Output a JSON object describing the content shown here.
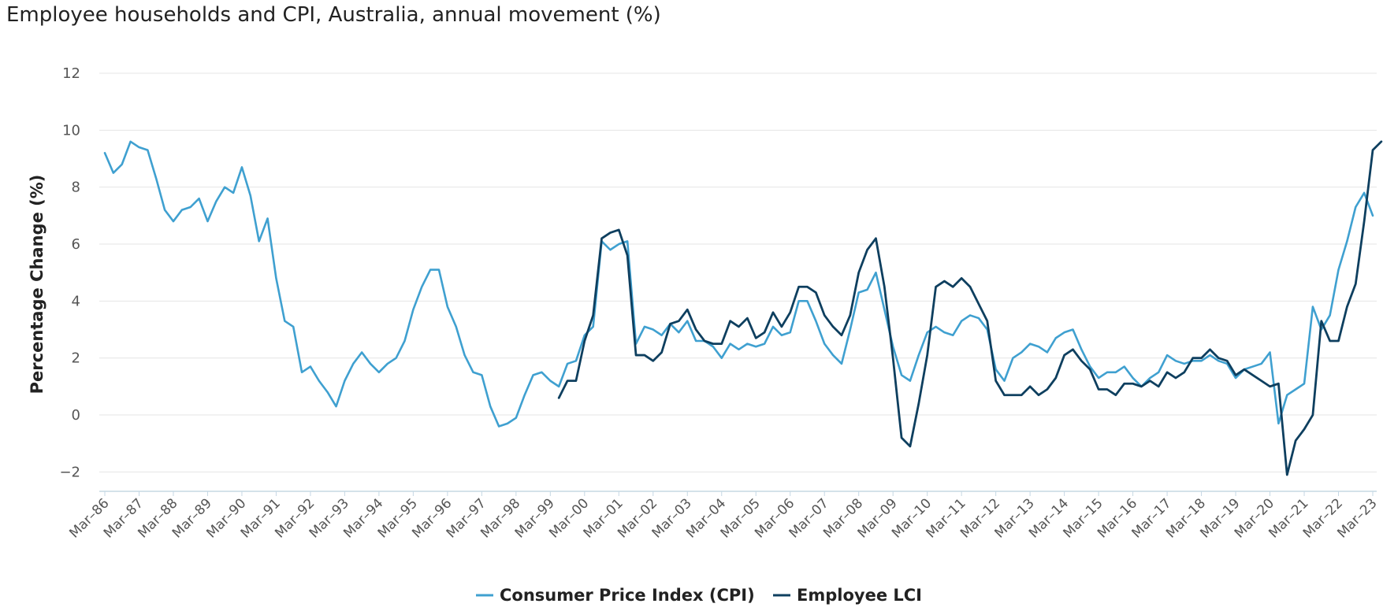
{
  "chart_data": {
    "type": "line",
    "title": "Employee households and CPI, Australia, annual movement (%)",
    "ylabel": "Percentage Change (%)",
    "xlabel": "",
    "ylim": [
      -2.7,
      12.5
    ],
    "y_ticks": [
      -2,
      0,
      2,
      4,
      6,
      8,
      10,
      12
    ],
    "grid": true,
    "legend_position": "bottom-center",
    "x_ticks": [
      "Mar-86",
      "Mar-87",
      "Mar-88",
      "Mar-89",
      "Mar-90",
      "Mar-91",
      "Mar-92",
      "Mar-93",
      "Mar-94",
      "Mar-95",
      "Mar-96",
      "Mar-97",
      "Mar-98",
      "Mar-99",
      "Mar-00",
      "Mar-01",
      "Mar-02",
      "Mar-03",
      "Mar-04",
      "Mar-05",
      "Mar-06",
      "Mar-07",
      "Mar-08",
      "Mar-09",
      "Mar-10",
      "Mar-11",
      "Mar-12",
      "Mar-13",
      "Mar-14",
      "Mar-15",
      "Mar-16",
      "Mar-17",
      "Mar-18",
      "Mar-19",
      "Mar-20",
      "Mar-21",
      "Mar-22",
      "Mar-23"
    ],
    "series": [
      {
        "name": "Consumer Price Index (CPI)",
        "color": "#3fa0d0",
        "start_quarter": "Mar-86",
        "values": [
          9.2,
          8.5,
          8.8,
          9.6,
          9.4,
          9.3,
          8.3,
          7.2,
          6.8,
          7.2,
          7.3,
          7.6,
          6.8,
          7.5,
          8.0,
          7.8,
          8.7,
          7.7,
          6.1,
          6.9,
          4.8,
          3.3,
          3.1,
          1.5,
          1.7,
          1.2,
          0.8,
          0.3,
          1.2,
          1.8,
          2.2,
          1.8,
          1.5,
          1.8,
          2.0,
          2.6,
          3.7,
          4.5,
          5.1,
          5.1,
          3.8,
          3.1,
          2.1,
          1.5,
          1.4,
          0.3,
          -0.4,
          -0.3,
          -0.1,
          0.7,
          1.4,
          1.5,
          1.2,
          1.0,
          1.8,
          1.9,
          2.8,
          3.1,
          6.1,
          5.8,
          6.0,
          6.1,
          2.5,
          3.1,
          3.0,
          2.8,
          3.2,
          2.9,
          3.3,
          2.6,
          2.6,
          2.4,
          2.0,
          2.5,
          2.3,
          2.5,
          2.4,
          2.5,
          3.1,
          2.8,
          2.9,
          4.0,
          4.0,
          3.3,
          2.5,
          2.1,
          1.8,
          3.0,
          4.3,
          4.4,
          5.0,
          3.7,
          2.4,
          1.4,
          1.2,
          2.1,
          2.9,
          3.1,
          2.9,
          2.8,
          3.3,
          3.5,
          3.4,
          3.0,
          1.6,
          1.2,
          2.0,
          2.2,
          2.5,
          2.4,
          2.2,
          2.7,
          2.9,
          3.0,
          2.3,
          1.7,
          1.3,
          1.5,
          1.5,
          1.7,
          1.3,
          1.0,
          1.3,
          1.5,
          2.1,
          1.9,
          1.8,
          1.9,
          1.9,
          2.1,
          1.9,
          1.8,
          1.3,
          1.6,
          1.7,
          1.8,
          2.2,
          -0.3,
          0.7,
          0.9,
          1.1,
          3.8,
          3.0,
          3.5,
          5.1,
          6.1,
          7.3,
          7.8,
          7.0
        ]
      },
      {
        "name": "Employee LCI",
        "color": "#0e3f5f",
        "start_quarter": "Jun-99",
        "values": [
          0.6,
          1.2,
          1.2,
          2.6,
          3.5,
          6.2,
          6.4,
          6.5,
          5.6,
          2.1,
          2.1,
          1.9,
          2.2,
          3.2,
          3.3,
          3.7,
          3.0,
          2.6,
          2.5,
          2.5,
          3.3,
          3.1,
          3.4,
          2.7,
          2.9,
          3.6,
          3.1,
          3.6,
          4.5,
          4.5,
          4.3,
          3.5,
          3.1,
          2.8,
          3.5,
          5.0,
          5.8,
          6.2,
          4.5,
          2.0,
          -0.8,
          -1.1,
          0.4,
          2.1,
          4.5,
          4.7,
          4.5,
          4.8,
          4.5,
          3.9,
          3.3,
          1.2,
          0.7,
          0.7,
          0.7,
          1.0,
          0.7,
          0.9,
          1.3,
          2.1,
          2.3,
          1.9,
          1.6,
          0.9,
          0.9,
          0.7,
          1.1,
          1.1,
          1.0,
          1.2,
          1.0,
          1.5,
          1.3,
          1.5,
          2.0,
          2.0,
          2.3,
          2.0,
          1.9,
          1.4,
          1.6,
          1.4,
          1.2,
          1.0,
          1.1,
          -2.1,
          -0.9,
          -0.5,
          0.0,
          3.3,
          2.6,
          2.6,
          3.8,
          4.6,
          6.8,
          9.3,
          9.6
        ]
      }
    ]
  }
}
